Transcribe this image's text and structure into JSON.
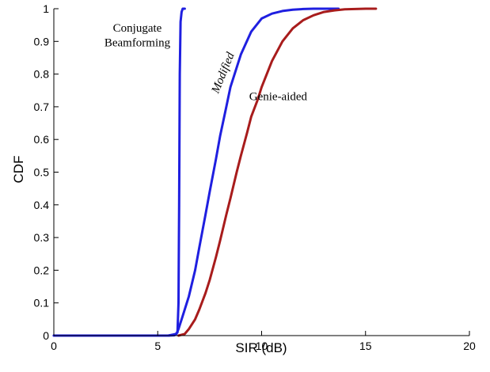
{
  "chart_data": {
    "type": "line",
    "title": "",
    "xlabel": "SIR (dB)",
    "ylabel": "CDF",
    "xlim": [
      0,
      20
    ],
    "ylim": [
      0,
      1
    ],
    "xticks": [
      0,
      5,
      10,
      15,
      20
    ],
    "yticks": [
      0,
      0.1,
      0.2,
      0.3,
      0.4,
      0.5,
      0.6,
      0.7,
      0.8,
      0.9,
      1
    ],
    "xtick_labels": [
      "0",
      "5",
      "10",
      "15",
      "20"
    ],
    "ytick_labels": [
      "0",
      "0.1",
      "0.2",
      "0.3",
      "0.4",
      "0.5",
      "0.6",
      "0.7",
      "0.8",
      "0.9",
      "1"
    ],
    "grid": false,
    "annotations": [
      {
        "text": "Conjugate",
        "x": 6.0,
        "y": 0.93
      },
      {
        "text": "Beamforming",
        "x": 6.0,
        "y": 0.885
      },
      {
        "text": "Modified",
        "x": 8.3,
        "y": 0.8
      },
      {
        "text": "Genie-aided",
        "x": 9.4,
        "y": 0.72
      }
    ],
    "series": [
      {
        "color": "#1f1fe0",
        "x": [
          0,
          5.5,
          5.8,
          5.95,
          6.0,
          6.03,
          6.06,
          6.1,
          6.15,
          6.2,
          6.3
        ],
        "y": [
          0,
          0,
          0.001,
          0.01,
          0.1,
          0.4,
          0.8,
          0.96,
          0.99,
          1.0,
          1.0
        ]
      },
      {
        "color": "#1f1fe0",
        "x": [
          0,
          5.5,
          5.9,
          6.0,
          6.2,
          6.5,
          6.8,
          7.0,
          7.3,
          7.5,
          7.8,
          8.0,
          8.3,
          8.5,
          8.8,
          9.0,
          9.5,
          10.0,
          10.5,
          11.0,
          11.5,
          12.0,
          12.5,
          13.0,
          13.7
        ],
        "y": [
          0,
          0,
          0.005,
          0.02,
          0.06,
          0.12,
          0.2,
          0.27,
          0.37,
          0.44,
          0.54,
          0.61,
          0.7,
          0.76,
          0.82,
          0.86,
          0.93,
          0.97,
          0.985,
          0.993,
          0.997,
          0.999,
          1.0,
          1.0,
          1.0
        ]
      },
      {
        "color": "#a81c1c",
        "x": [
          6.0,
          6.3,
          6.5,
          6.8,
          7.0,
          7.3,
          7.5,
          7.8,
          8.0,
          8.3,
          8.5,
          8.8,
          9.0,
          9.3,
          9.5,
          9.8,
          10.0,
          10.5,
          11.0,
          11.5,
          12.0,
          12.5,
          13.0,
          13.5,
          14.0,
          15.0,
          15.5
        ],
        "y": [
          0,
          0.005,
          0.02,
          0.05,
          0.08,
          0.13,
          0.17,
          0.24,
          0.29,
          0.37,
          0.42,
          0.5,
          0.55,
          0.62,
          0.67,
          0.72,
          0.76,
          0.84,
          0.9,
          0.94,
          0.965,
          0.98,
          0.99,
          0.995,
          0.998,
          1.0,
          1.0
        ]
      }
    ]
  }
}
